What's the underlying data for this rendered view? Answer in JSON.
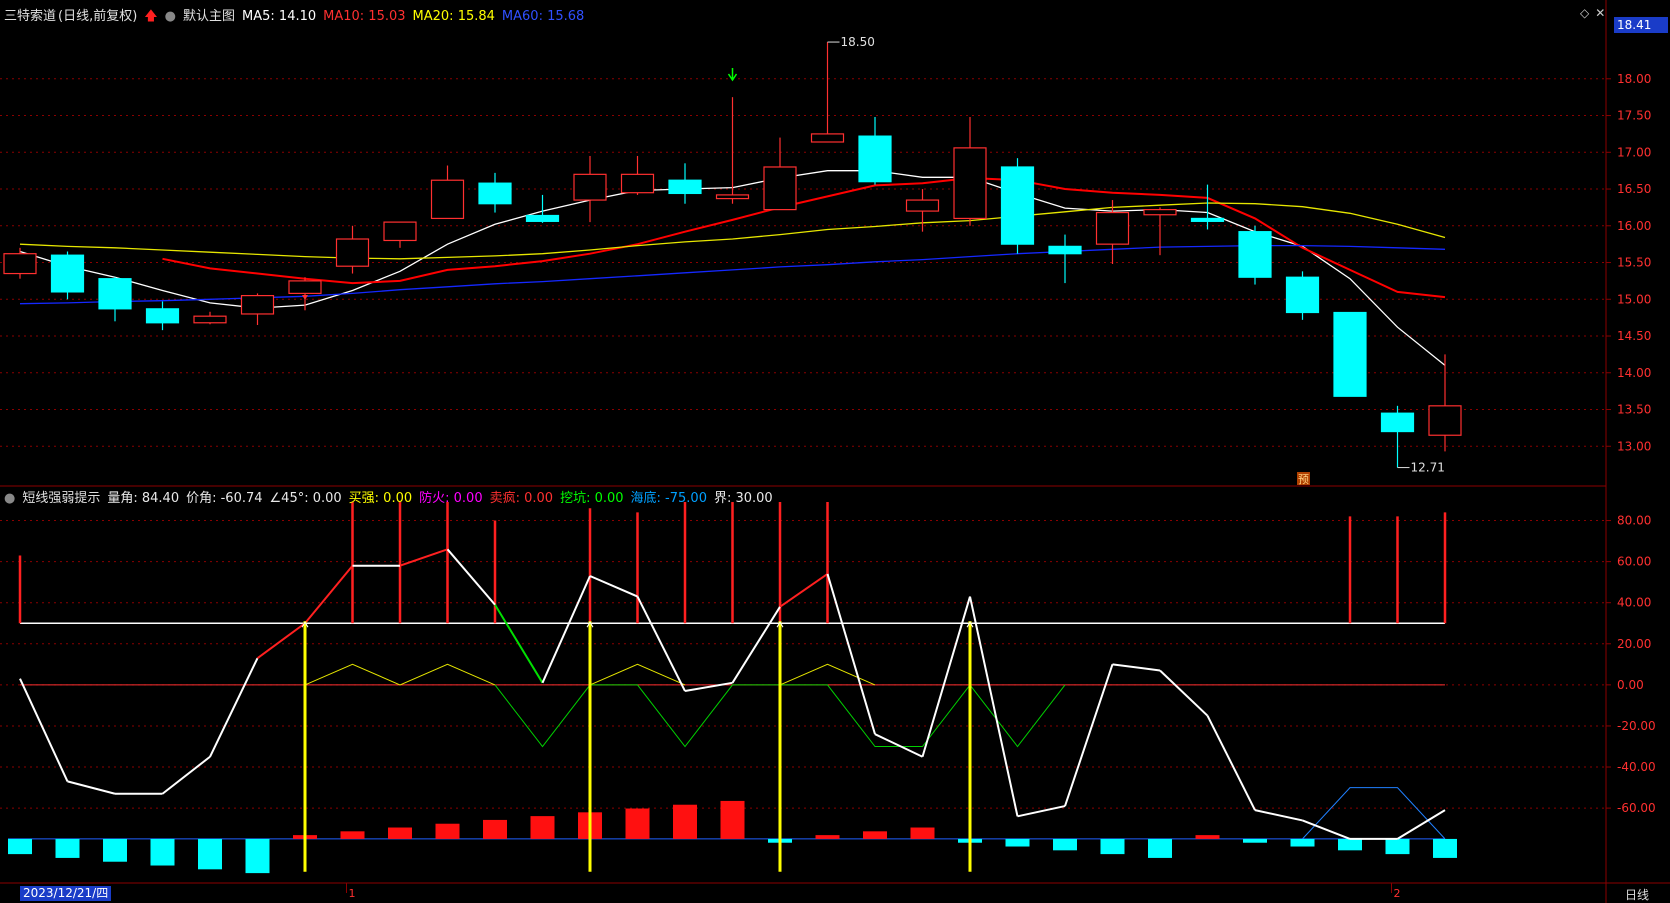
{
  "header": {
    "stock_name": "三特索道",
    "mode": "(日线,前复权)",
    "template": "默认主图",
    "ma5_label": "MA5: 14.10",
    "ma10_label": "MA10: 15.03",
    "ma20_label": "MA20: 15.84",
    "ma60_label": "MA60: 15.68"
  },
  "indicator_header": {
    "name": "短线强弱提示",
    "items": [
      {
        "text": "量角: 84.40",
        "color": "#e8e8e8"
      },
      {
        "text": "价角: -60.74",
        "color": "#e8e8e8"
      },
      {
        "text": "∠45°: 0.00",
        "color": "#e8e8e8"
      },
      {
        "text": "买强: 0.00",
        "color": "#ffff00"
      },
      {
        "text": "防火: 0.00",
        "color": "#ff00ff"
      },
      {
        "text": "卖疯: 0.00",
        "color": "#ff3030"
      },
      {
        "text": "挖坑: 0.00",
        "color": "#00ff00"
      },
      {
        "text": "海底: -75.00",
        "color": "#00a0ff"
      },
      {
        "text": "界: 30.00",
        "color": "#e8e8e8"
      }
    ]
  },
  "price_now": "18.41",
  "date_label": "2023/12/21/四",
  "period_label": "日线",
  "month_marks": [
    "1",
    "2"
  ],
  "pre_badge": "预",
  "colors": {
    "up": "#ff3030",
    "down": "#00ffff",
    "ma5": "#ffffff",
    "ma10": "#ff0000",
    "ma20": "#e6e600",
    "ma60": "#1428ff",
    "grid": "#8b0000"
  },
  "chart_data": [
    {
      "type": "candlestick",
      "title": "三特索道 (日线,前复权)",
      "ylim": [
        12.5,
        18.8
      ],
      "yticks": [
        "13.00",
        "13.50",
        "14.00",
        "14.50",
        "15.00",
        "15.50",
        "16.00",
        "16.50",
        "17.00",
        "17.50",
        "18.00"
      ],
      "annotations": [
        {
          "text": "18.50",
          "x_index": 17,
          "y": 18.5
        },
        {
          "text": "12.71",
          "x_index": 29,
          "y": 12.71
        }
      ],
      "candles": [
        {
          "o": 15.35,
          "c": 15.62,
          "h": 15.7,
          "l": 15.28
        },
        {
          "o": 15.6,
          "c": 15.1,
          "h": 15.65,
          "l": 15.0
        },
        {
          "o": 15.28,
          "c": 14.87,
          "h": 15.3,
          "l": 14.7
        },
        {
          "o": 14.87,
          "c": 14.68,
          "h": 14.97,
          "l": 14.58
        },
        {
          "o": 14.68,
          "c": 14.77,
          "h": 14.83,
          "l": 14.66
        },
        {
          "o": 14.8,
          "c": 15.05,
          "h": 15.08,
          "l": 14.65
        },
        {
          "o": 15.08,
          "c": 15.25,
          "h": 15.3,
          "l": 14.85
        },
        {
          "o": 15.45,
          "c": 15.82,
          "h": 16.0,
          "l": 15.35
        },
        {
          "o": 15.8,
          "c": 16.05,
          "h": 16.05,
          "l": 15.7
        },
        {
          "o": 16.1,
          "c": 16.62,
          "h": 16.82,
          "l": 16.1
        },
        {
          "o": 16.58,
          "c": 16.3,
          "h": 16.72,
          "l": 16.18
        },
        {
          "o": 16.14,
          "c": 16.06,
          "h": 16.42,
          "l": 16.04
        },
        {
          "o": 16.35,
          "c": 16.7,
          "h": 16.95,
          "l": 16.05
        },
        {
          "o": 16.45,
          "c": 16.7,
          "h": 16.95,
          "l": 16.42
        },
        {
          "o": 16.62,
          "c": 16.44,
          "h": 16.85,
          "l": 16.3
        },
        {
          "o": 16.37,
          "c": 16.42,
          "h": 17.75,
          "l": 16.3
        },
        {
          "o": 16.22,
          "c": 16.8,
          "h": 17.2,
          "l": 16.22
        },
        {
          "o": 17.14,
          "c": 17.25,
          "h": 18.5,
          "l": 17.14
        },
        {
          "o": 17.22,
          "c": 16.6,
          "h": 17.48,
          "l": 16.56
        },
        {
          "o": 16.2,
          "c": 16.35,
          "h": 16.5,
          "l": 15.92
        },
        {
          "o": 16.1,
          "c": 17.06,
          "h": 17.48,
          "l": 16.0
        },
        {
          "o": 16.8,
          "c": 15.75,
          "h": 16.92,
          "l": 15.62
        },
        {
          "o": 15.72,
          "c": 15.62,
          "h": 15.88,
          "l": 15.22
        },
        {
          "o": 15.75,
          "c": 16.18,
          "h": 16.35,
          "l": 15.48
        },
        {
          "o": 16.15,
          "c": 16.22,
          "h": 16.25,
          "l": 15.6
        },
        {
          "o": 16.1,
          "c": 16.06,
          "h": 16.56,
          "l": 15.95
        },
        {
          "o": 15.92,
          "c": 15.3,
          "h": 16.0,
          "l": 15.2
        },
        {
          "o": 15.3,
          "c": 14.82,
          "h": 15.38,
          "l": 14.72
        },
        {
          "o": 14.82,
          "c": 13.68,
          "h": 14.82,
          "l": 13.68
        },
        {
          "o": 13.45,
          "c": 13.2,
          "h": 13.55,
          "l": 12.71
        },
        {
          "o": 13.15,
          "c": 13.55,
          "h": 14.25,
          "l": 12.93
        }
      ],
      "ma": [
        {
          "name": "MA5",
          "color": "#ffffff",
          "values": [
            15.65,
            15.45,
            15.3,
            15.12,
            14.95,
            14.88,
            14.92,
            15.12,
            15.38,
            15.75,
            16.02,
            16.2,
            16.35,
            16.48,
            16.5,
            16.52,
            16.65,
            16.75,
            16.75,
            16.66,
            16.66,
            16.44,
            16.24,
            16.2,
            16.22,
            16.18,
            15.92,
            15.72,
            15.28,
            14.62,
            14.1
          ]
        },
        {
          "name": "MA10",
          "color": "#ff0000",
          "values": [
            null,
            null,
            null,
            15.55,
            15.42,
            15.35,
            15.28,
            15.22,
            15.25,
            15.4,
            15.45,
            15.52,
            15.62,
            15.75,
            15.92,
            16.08,
            16.25,
            16.4,
            16.55,
            16.58,
            16.65,
            16.62,
            16.5,
            16.45,
            16.42,
            16.38,
            16.1,
            15.7,
            15.4,
            15.1,
            15.03
          ]
        },
        {
          "name": "MA20",
          "color": "#e6e600",
          "values": [
            15.75,
            15.72,
            15.7,
            15.67,
            15.64,
            15.61,
            15.58,
            15.56,
            15.55,
            15.57,
            15.59,
            15.62,
            15.67,
            15.73,
            15.78,
            15.82,
            15.88,
            15.95,
            15.99,
            16.04,
            16.07,
            16.13,
            16.19,
            16.25,
            16.28,
            16.31,
            16.3,
            16.26,
            16.17,
            16.02,
            15.84
          ]
        },
        {
          "name": "MA60",
          "color": "#1428ff",
          "values": [
            14.94,
            14.95,
            14.97,
            14.98,
            15.0,
            15.02,
            15.04,
            15.08,
            15.13,
            15.17,
            15.21,
            15.24,
            15.28,
            15.32,
            15.36,
            15.4,
            15.44,
            15.47,
            15.51,
            15.54,
            15.58,
            15.62,
            15.65,
            15.68,
            15.71,
            15.72,
            15.73,
            15.73,
            15.72,
            15.7,
            15.68
          ]
        }
      ]
    },
    {
      "type": "line",
      "title": "短线强弱提示",
      "ylim": [
        -95,
        90
      ],
      "yticks": [
        "80.00",
        "60.00",
        "40.00",
        "20.00",
        "0.00",
        "-20.00",
        "-40.00",
        "-60.00"
      ],
      "threshold": 30,
      "baseline": -75,
      "strength_line": [
        3,
        -47,
        -53,
        -53,
        -35,
        13,
        30,
        58,
        58,
        66,
        39,
        1,
        53,
        43,
        -3,
        1,
        38,
        54,
        -24,
        -35,
        43,
        -64,
        -59,
        10,
        7,
        -15,
        -61,
        -66,
        -75,
        -75,
        -61
      ],
      "red_spikes": [
        63,
        null,
        null,
        null,
        null,
        null,
        null,
        89,
        89,
        89,
        80,
        null,
        86,
        84,
        89,
        89,
        89,
        89,
        null,
        null,
        null,
        null,
        null,
        null,
        null,
        null,
        null,
        null,
        82,
        82,
        84
      ],
      "yellow_pulses": [
        null,
        null,
        null,
        null,
        null,
        null,
        31,
        null,
        null,
        null,
        null,
        null,
        31,
        null,
        null,
        null,
        31,
        null,
        null,
        null,
        31,
        null,
        null,
        null,
        null,
        null,
        null,
        null,
        null,
        null,
        null
      ],
      "yellow_zigzag": [
        null,
        null,
        null,
        null,
        null,
        null,
        0,
        10,
        0,
        10,
        0,
        null,
        0,
        10,
        0,
        null,
        0,
        10,
        0,
        null,
        null,
        null,
        null,
        null,
        null,
        null,
        null,
        null,
        null,
        null,
        null
      ],
      "green_zigzag": [
        null,
        null,
        null,
        null,
        null,
        null,
        null,
        null,
        null,
        null,
        0,
        -30,
        0,
        0,
        -30,
        0,
        0,
        0,
        -30,
        -30,
        0,
        -30,
        0,
        null,
        null,
        null,
        null,
        null,
        null,
        null,
        null
      ],
      "blue_line": [
        null,
        null,
        null,
        null,
        null,
        null,
        null,
        null,
        null,
        null,
        null,
        null,
        null,
        null,
        null,
        null,
        null,
        null,
        null,
        null,
        null,
        null,
        null,
        null,
        null,
        null,
        null,
        -75,
        -50,
        -50,
        -75
      ],
      "bars": [
        -8,
        -10,
        -12,
        -14,
        -16,
        -18,
        2,
        4,
        6,
        8,
        10,
        12,
        14,
        16,
        18,
        20,
        -2,
        2,
        4,
        6,
        -2,
        -4,
        -6,
        -8,
        -10,
        2,
        -2,
        -4,
        -6,
        -8,
        -10
      ]
    }
  ]
}
